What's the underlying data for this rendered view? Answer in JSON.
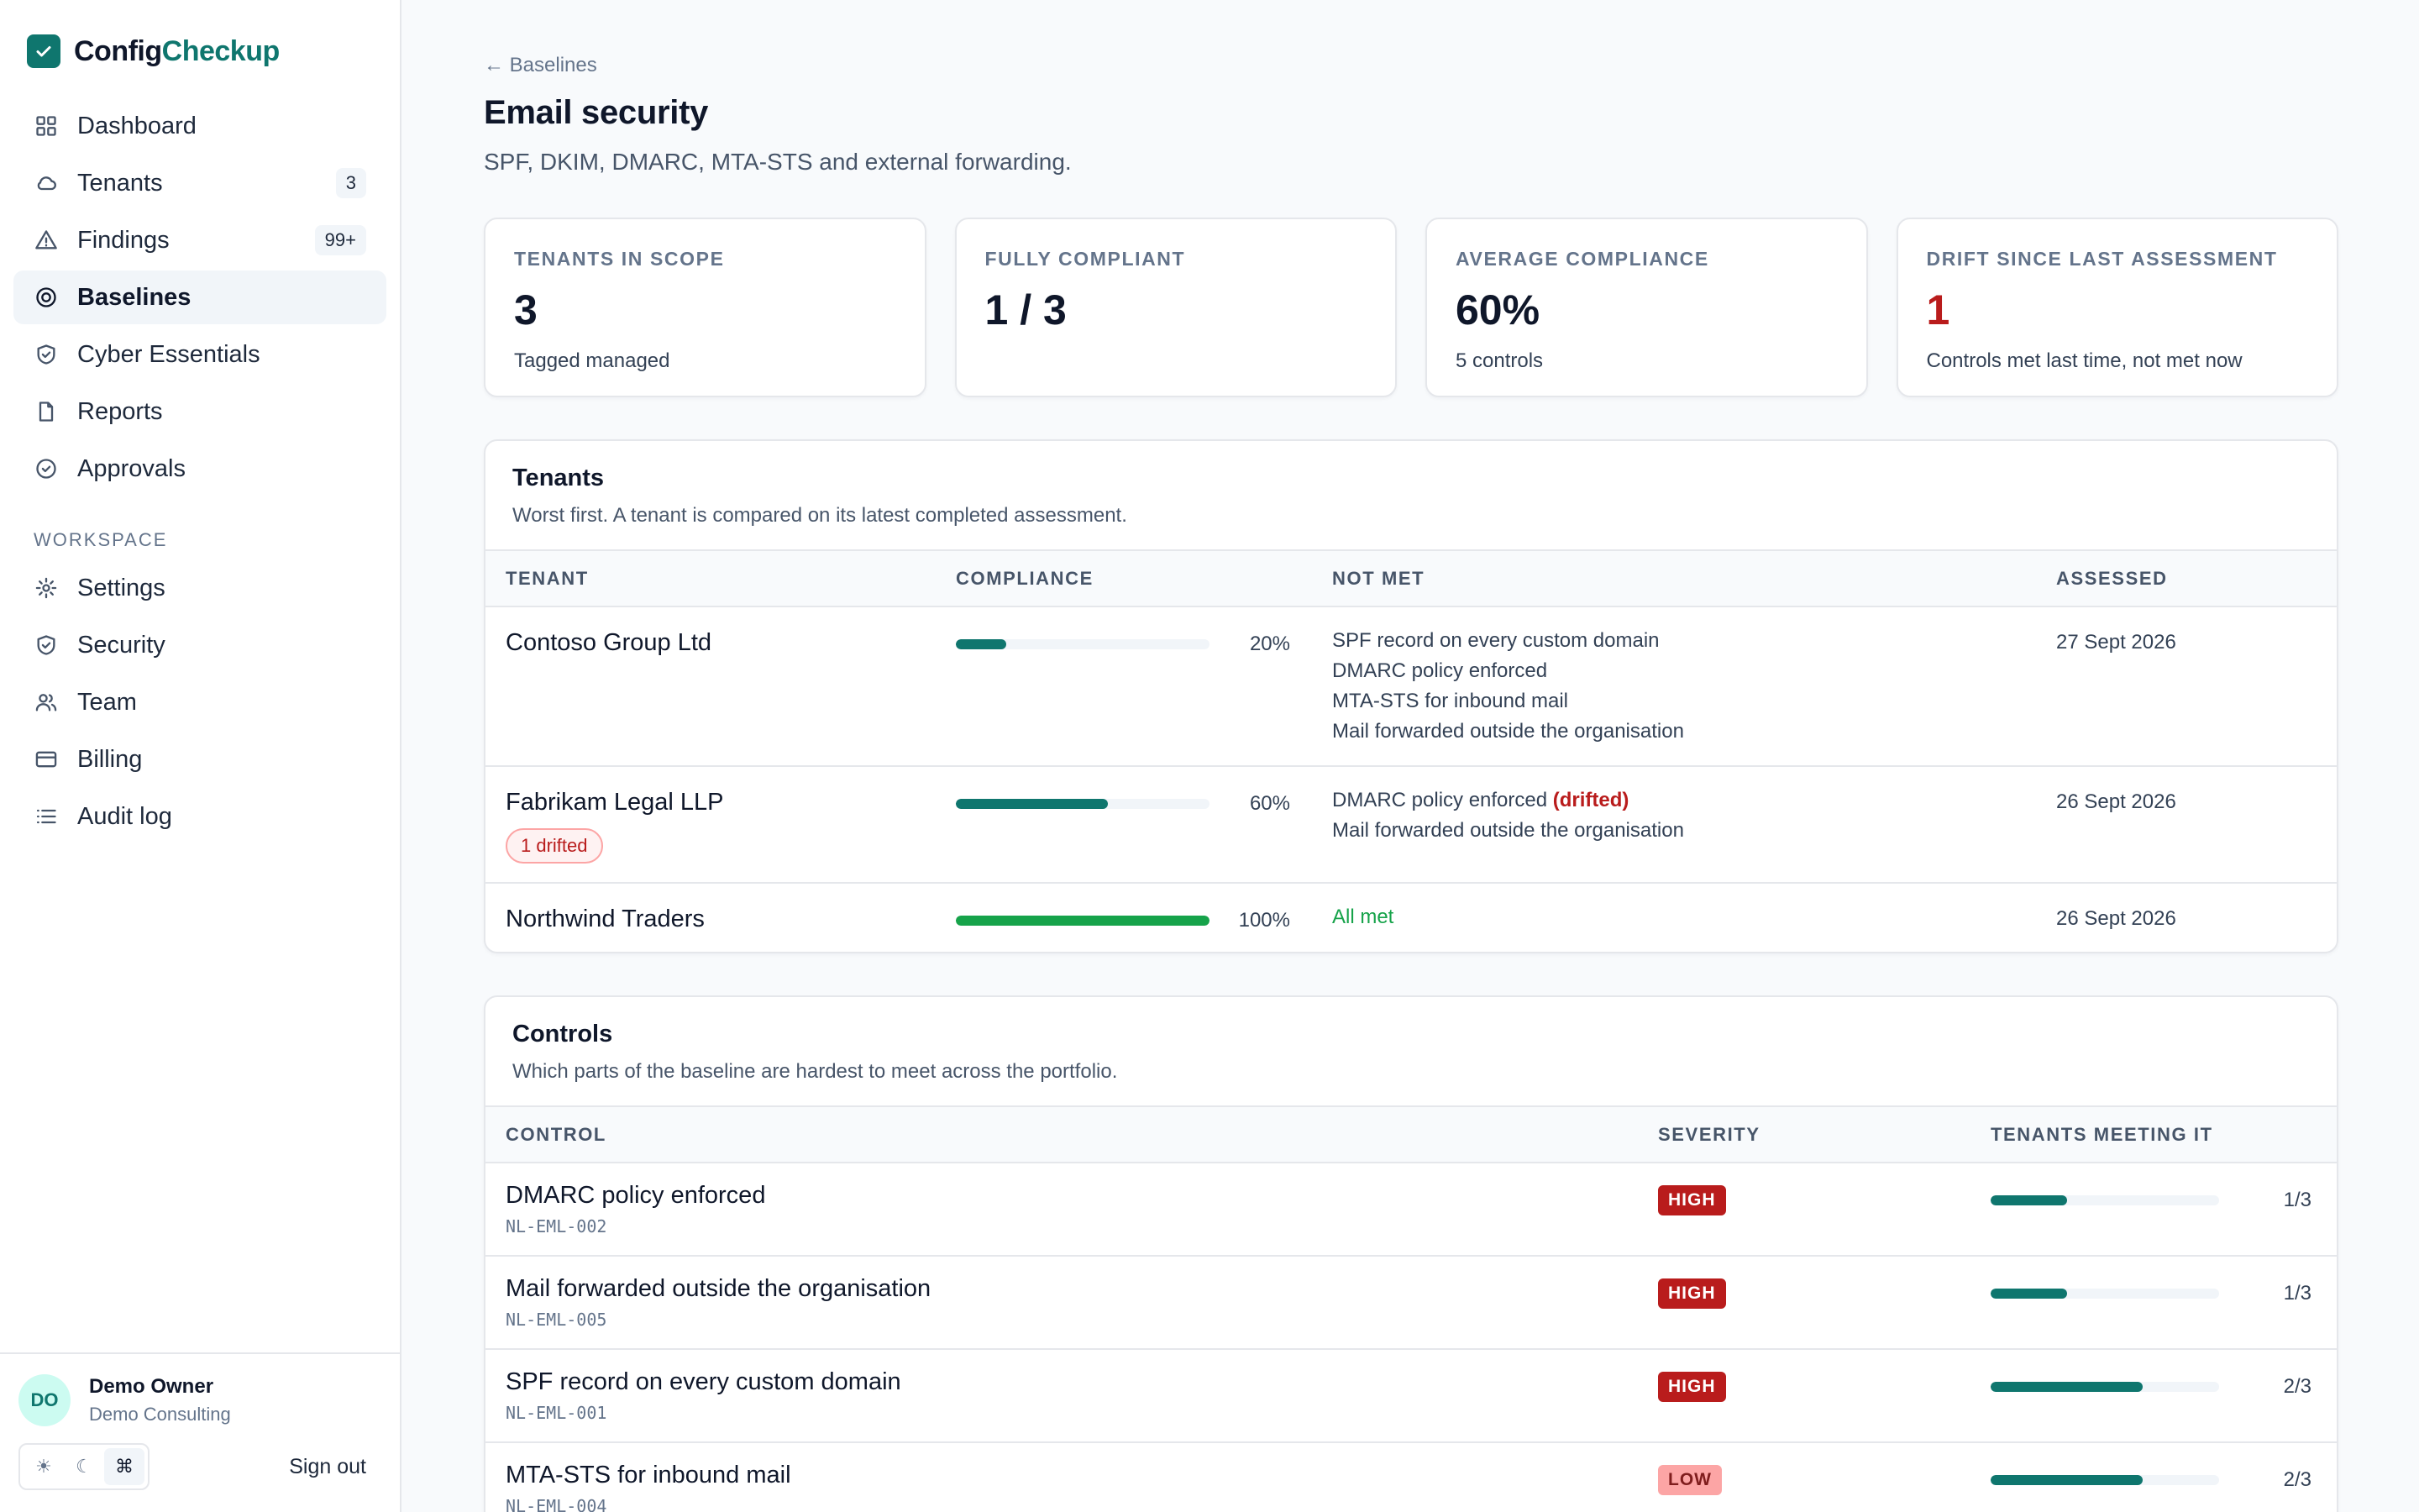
{
  "brand": {
    "name_part1": "Config",
    "name_part2": "Checkup"
  },
  "nav": {
    "primary": [
      {
        "label": "Dashboard",
        "icon": "grid-icon",
        "count": ""
      },
      {
        "label": "Tenants",
        "icon": "cloud-icon",
        "count": "3"
      },
      {
        "label": "Findings",
        "icon": "warning-icon",
        "count": "99+"
      },
      {
        "label": "Baselines",
        "icon": "target-icon",
        "count": "",
        "active": true
      },
      {
        "label": "Cyber Essentials",
        "icon": "shield-check-icon",
        "count": ""
      },
      {
        "label": "Reports",
        "icon": "document-icon",
        "count": ""
      },
      {
        "label": "Approvals",
        "icon": "check-circle-icon",
        "count": ""
      }
    ],
    "section_label": "WORKSPACE",
    "workspace": [
      {
        "label": "Settings",
        "icon": "gear-icon"
      },
      {
        "label": "Security",
        "icon": "shield-icon"
      },
      {
        "label": "Team",
        "icon": "users-icon"
      },
      {
        "label": "Billing",
        "icon": "credit-card-icon"
      },
      {
        "label": "Audit log",
        "icon": "list-icon"
      }
    ]
  },
  "user": {
    "initials": "DO",
    "name": "Demo Owner",
    "org": "Demo Consulting"
  },
  "footer": {
    "theme_light": "☀",
    "theme_dark": "☾",
    "theme_system": "⌘",
    "signout": "Sign out"
  },
  "page": {
    "back": "← Baselines",
    "title": "Email security",
    "subtitle": "SPF, DKIM, DMARC, MTA-STS and external forwarding."
  },
  "stats": [
    {
      "label": "TENANTS IN SCOPE",
      "value": "3",
      "note": "Tagged managed"
    },
    {
      "label": "FULLY COMPLIANT",
      "value": "1 / 3",
      "note": ""
    },
    {
      "label": "AVERAGE COMPLIANCE",
      "value": "60%",
      "note": "5 controls"
    },
    {
      "label": "DRIFT SINCE LAST ASSESSMENT",
      "value": "1",
      "note": "Controls met last time, not met now"
    }
  ],
  "tenants": {
    "title": "Tenants",
    "desc": "Worst first. A tenant is compared on its latest completed assessment.",
    "columns": [
      "TENANT",
      "COMPLIANCE",
      "NOT MET",
      "ASSESSED"
    ],
    "rows": [
      {
        "name": "Contoso Group Ltd",
        "badge": "",
        "compliance": 20,
        "compliance_label": "20%",
        "not_met": [
          "SPF record on every custom domain",
          "DMARC policy enforced",
          "MTA-STS for inbound mail",
          "Mail forwarded outside the organisation"
        ],
        "drift_note": "",
        "assessed": "27 Sept 2026"
      },
      {
        "name": "Fabrikam Legal LLP",
        "badge": "1 drifted",
        "compliance": 60,
        "compliance_label": "60%",
        "not_met": [
          "DMARC policy enforced",
          "Mail forwarded outside the organisation"
        ],
        "drift_note": "(drifted)",
        "assessed": "26 Sept 2026"
      },
      {
        "name": "Northwind Traders",
        "badge": "",
        "compliance": 100,
        "compliance_label": "100%",
        "not_met": [],
        "all_met": "All met",
        "drift_note": "",
        "assessed": "26 Sept 2026"
      }
    ]
  },
  "controls": {
    "title": "Controls",
    "desc": "Which parts of the baseline are hardest to meet across the portfolio.",
    "columns": [
      "CONTROL",
      "SEVERITY",
      "TENANTS MEETING IT"
    ],
    "rows": [
      {
        "name": "DMARC policy enforced",
        "id": "NL-EML-002",
        "severity": "HIGH",
        "meeting": 1,
        "total": 3,
        "meeting_label": "1/3"
      },
      {
        "name": "Mail forwarded outside the organisation",
        "id": "NL-EML-005",
        "severity": "HIGH",
        "meeting": 1,
        "total": 3,
        "meeting_label": "1/3"
      },
      {
        "name": "SPF record on every custom domain",
        "id": "NL-EML-001",
        "severity": "HIGH",
        "meeting": 2,
        "total": 3,
        "meeting_label": "2/3"
      },
      {
        "name": "MTA-STS for inbound mail",
        "id": "NL-EML-004",
        "severity": "LOW",
        "meeting": 2,
        "total": 3,
        "meeting_label": "2/3"
      }
    ]
  },
  "colors": {
    "accent": "#0f766e",
    "danger": "#b91c1c",
    "success": "#16a34a"
  }
}
